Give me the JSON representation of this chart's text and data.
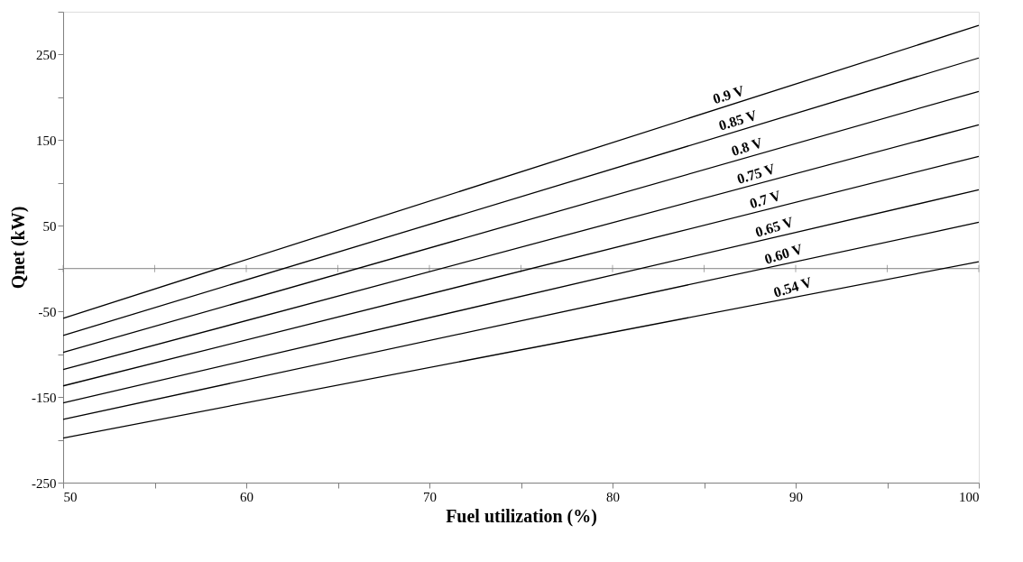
{
  "chart_data": {
    "type": "line",
    "xlabel": "Fuel utilization (%)",
    "ylabel": "Qnet (kW)",
    "x": [
      50,
      100
    ],
    "series": [
      {
        "name": "0.9 V",
        "color": "#000000",
        "values": [
          -58,
          284
        ]
      },
      {
        "name": "0.85 V",
        "color": "#000000",
        "values": [
          -78,
          246
        ]
      },
      {
        "name": "0.8 V",
        "color": "#000000",
        "values": [
          -98,
          207
        ]
      },
      {
        "name": "0.75 V",
        "color": "#000000",
        "values": [
          -118,
          168
        ]
      },
      {
        "name": "0.7 V",
        "color": "#000000",
        "values": [
          -137,
          131
        ]
      },
      {
        "name": "0.65 V",
        "color": "#000000",
        "values": [
          -157,
          92
        ]
      },
      {
        "name": "0.60 V",
        "color": "#000000",
        "values": [
          -176,
          54
        ]
      },
      {
        "name": "0.54 V",
        "color": "#000000",
        "values": [
          -198,
          8
        ]
      }
    ],
    "xlim": [
      50,
      100
    ],
    "xticks": [
      50,
      {
        "value": 55,
        "label": null
      },
      60,
      {
        "value": 65,
        "label": null
      },
      70,
      {
        "value": 75,
        "label": null
      },
      80,
      {
        "value": 85,
        "label": null
      },
      90,
      {
        "value": 95,
        "label": null
      },
      100
    ],
    "ylim": [
      -250,
      300
    ],
    "yticks": [
      -250,
      {
        "value": -200,
        "label": null
      },
      -150,
      {
        "value": -100,
        "label": null
      },
      -50,
      {
        "value": 0,
        "label": null
      },
      50,
      {
        "value": 100,
        "label": null
      },
      150,
      {
        "value": 200,
        "label": null
      },
      250,
      {
        "value": 300,
        "label": null
      }
    ],
    "ref_lines": [
      {
        "axis": "y",
        "value": 0,
        "color": "#808080"
      }
    ],
    "grid": false,
    "legend": false,
    "marker": "none",
    "line_style": "solid"
  }
}
